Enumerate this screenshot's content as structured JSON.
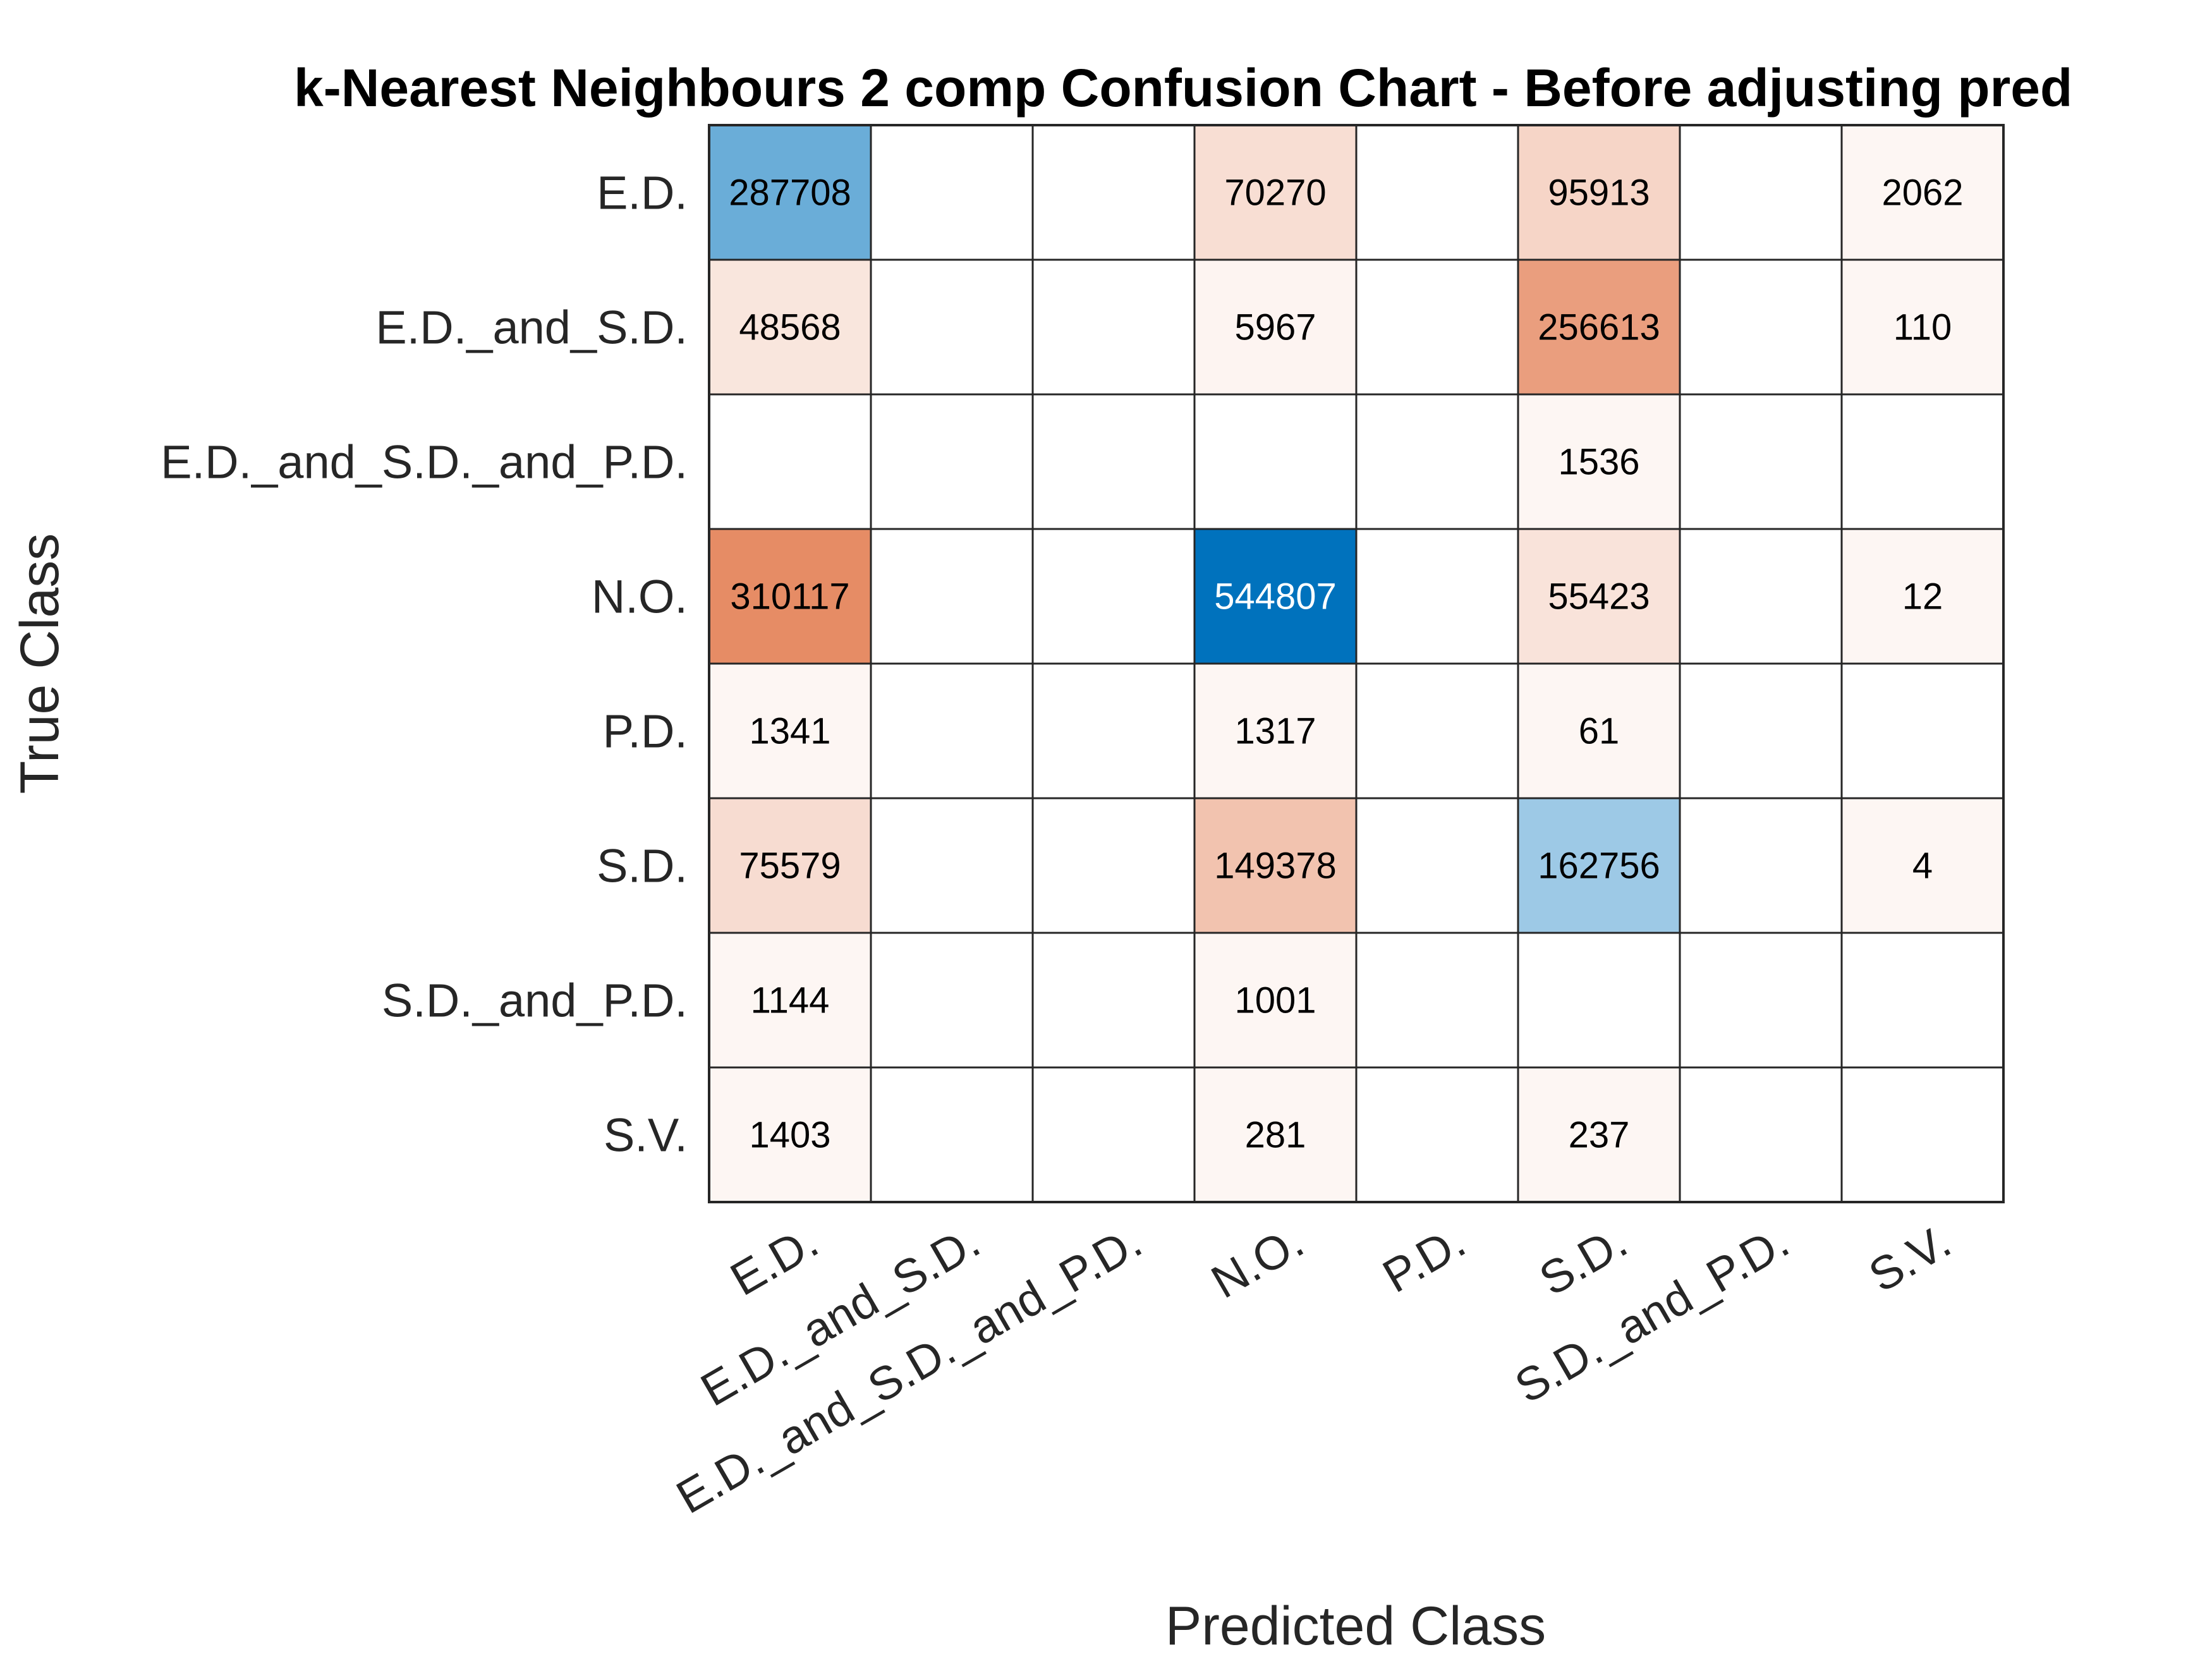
{
  "chart_data": {
    "type": "heatmap",
    "title": "k-Nearest Neighbours 2 comp Confusion Chart - Before adjusting pred",
    "xlabel": "Predicted Class",
    "ylabel": "True Class",
    "classes": [
      "E.D.",
      "E.D._and_S.D.",
      "E.D._and_S.D._and_P.D.",
      "N.O.",
      "P.D.",
      "S.D.",
      "S.D._and_P.D.",
      "S.V."
    ],
    "x_categories": [
      "E.D.",
      "E.D._and_S.D.",
      "E.D._and_S.D._and_P.D.",
      "N.O.",
      "P.D.",
      "S.D.",
      "S.D._and_P.D.",
      "S.V."
    ],
    "y_categories": [
      "E.D.",
      "E.D._and_S.D.",
      "E.D._and_S.D._and_P.D.",
      "N.O.",
      "P.D.",
      "S.D.",
      "S.D._and_P.D.",
      "S.V."
    ],
    "matrix": [
      [
        287708,
        null,
        null,
        70270,
        null,
        95913,
        null,
        2062
      ],
      [
        48568,
        null,
        null,
        5967,
        null,
        256613,
        null,
        110
      ],
      [
        null,
        null,
        null,
        null,
        null,
        1536,
        null,
        null
      ],
      [
        310117,
        null,
        null,
        544807,
        null,
        55423,
        null,
        12
      ],
      [
        1341,
        null,
        null,
        1317,
        null,
        61,
        null,
        null
      ],
      [
        75579,
        null,
        null,
        149378,
        null,
        162756,
        null,
        4
      ],
      [
        1144,
        null,
        null,
        1001,
        null,
        null,
        null,
        null
      ],
      [
        1403,
        null,
        null,
        281,
        null,
        237,
        null,
        null
      ]
    ],
    "colors": {
      "diagonal": "#0072bd",
      "off_diagonal": "#d95319",
      "grid": "#262626",
      "empty": "#ffffff"
    },
    "grid": true,
    "legend": "none"
  }
}
